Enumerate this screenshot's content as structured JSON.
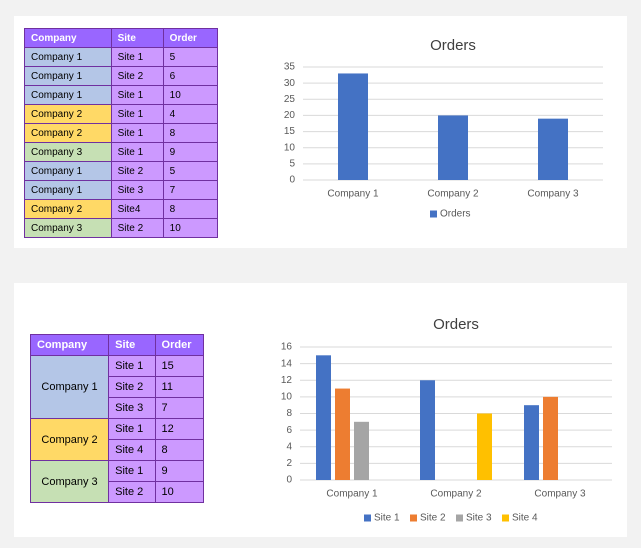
{
  "tables": [
    {
      "header": [
        "Company",
        "Site",
        "Order"
      ],
      "rows": [
        [
          "Company 1",
          "Site 1",
          5
        ],
        [
          "Company 1",
          "Site 2",
          6
        ],
        [
          "Company 1",
          "Site 1",
          10
        ],
        [
          "Company 2",
          "Site 1",
          4
        ],
        [
          "Company 2",
          "Site 1",
          8
        ],
        [
          "Company 3",
          "Site 1",
          9
        ],
        [
          "Company 1",
          "Site 2",
          5
        ],
        [
          "Company 1",
          "Site 3",
          7
        ],
        [
          "Company 2",
          "Site4",
          8
        ],
        [
          "Company 3",
          "Site 2",
          10
        ]
      ]
    },
    {
      "header": [
        "Company",
        "Site",
        "Order"
      ],
      "groups": [
        {
          "company": "Company 1",
          "rows": [
            [
              "Site 1",
              15
            ],
            [
              "Site 2",
              11
            ],
            [
              "Site 3",
              7
            ]
          ]
        },
        {
          "company": "Company 2",
          "rows": [
            [
              "Site 1",
              12
            ],
            [
              "Site 4",
              8
            ]
          ]
        },
        {
          "company": "Company 3",
          "rows": [
            [
              "Site 1",
              9
            ],
            [
              "Site 2",
              10
            ]
          ]
        }
      ]
    }
  ],
  "chart_data": [
    {
      "type": "bar",
      "title": "Orders",
      "categories": [
        "Company 1",
        "Company 2",
        "Company 3"
      ],
      "series": [
        {
          "name": "Orders",
          "color": "#4472c4",
          "values": [
            33,
            20,
            19
          ]
        }
      ],
      "ylim": [
        0,
        35
      ],
      "yticks": [
        0,
        5,
        10,
        15,
        20,
        25,
        30,
        35
      ],
      "grid": true,
      "legend": "bottom"
    },
    {
      "type": "bar",
      "title": "Orders",
      "categories": [
        "Company 1",
        "Company 2",
        "Company 3"
      ],
      "series": [
        {
          "name": "Site 1",
          "color": "#4472c4",
          "values": [
            15,
            12,
            9
          ]
        },
        {
          "name": "Site 2",
          "color": "#ed7d31",
          "values": [
            11,
            null,
            10
          ]
        },
        {
          "name": "Site 3",
          "color": "#a5a5a5",
          "values": [
            7,
            null,
            null
          ]
        },
        {
          "name": "Site 4",
          "color": "#ffc000",
          "values": [
            null,
            8,
            null
          ]
        }
      ],
      "ylim": [
        0,
        16
      ],
      "yticks": [
        0,
        2,
        4,
        6,
        8,
        10,
        12,
        14,
        16
      ],
      "grid": true,
      "legend": "bottom"
    }
  ]
}
